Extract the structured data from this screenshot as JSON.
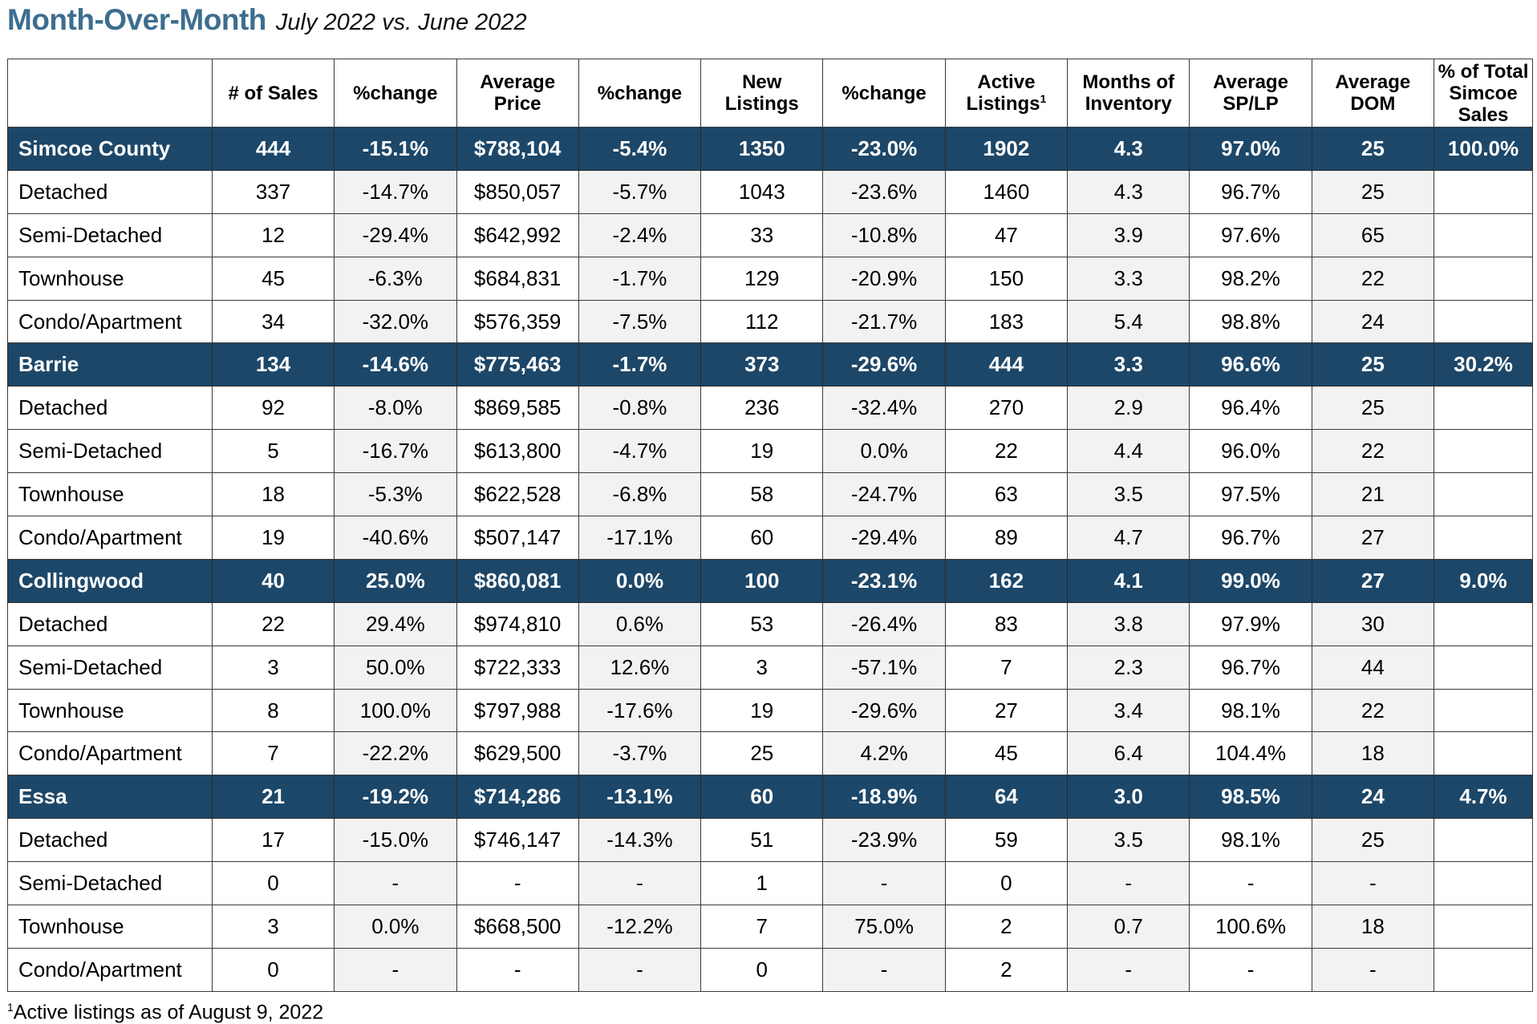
{
  "title": {
    "main": "Month-Over-Month",
    "sub": "July 2022 vs. June 2022"
  },
  "columns": [
    "",
    "# of Sales",
    "%change",
    "Average Price",
    "%change",
    "New Listings",
    "%change",
    "Active Listings",
    "Months of Inventory",
    "Average SP/LP",
    "Average DOM",
    "% of Total Simcoe Sales"
  ],
  "footnote_marker": "1",
  "rows": [
    {
      "type": "group",
      "cells": [
        "Simcoe County",
        "444",
        "-15.1%",
        "$788,104",
        "-5.4%",
        "1350",
        "-23.0%",
        "1902",
        "4.3",
        "97.0%",
        "25",
        "100.0%"
      ]
    },
    {
      "type": "sub",
      "cells": [
        "Detached",
        "337",
        "-14.7%",
        "$850,057",
        "-5.7%",
        "1043",
        "-23.6%",
        "1460",
        "4.3",
        "96.7%",
        "25",
        ""
      ]
    },
    {
      "type": "sub",
      "cells": [
        "Semi-Detached",
        "12",
        "-29.4%",
        "$642,992",
        "-2.4%",
        "33",
        "-10.8%",
        "47",
        "3.9",
        "97.6%",
        "65",
        ""
      ]
    },
    {
      "type": "sub",
      "cells": [
        "Townhouse",
        "45",
        "-6.3%",
        "$684,831",
        "-1.7%",
        "129",
        "-20.9%",
        "150",
        "3.3",
        "98.2%",
        "22",
        ""
      ]
    },
    {
      "type": "sub",
      "cells": [
        "Condo/Apartment",
        "34",
        "-32.0%",
        "$576,359",
        "-7.5%",
        "112",
        "-21.7%",
        "183",
        "5.4",
        "98.8%",
        "24",
        ""
      ]
    },
    {
      "type": "group",
      "cells": [
        "Barrie",
        "134",
        "-14.6%",
        "$775,463",
        "-1.7%",
        "373",
        "-29.6%",
        "444",
        "3.3",
        "96.6%",
        "25",
        "30.2%"
      ]
    },
    {
      "type": "sub",
      "cells": [
        "Detached",
        "92",
        "-8.0%",
        "$869,585",
        "-0.8%",
        "236",
        "-32.4%",
        "270",
        "2.9",
        "96.4%",
        "25",
        ""
      ]
    },
    {
      "type": "sub",
      "cells": [
        "Semi-Detached",
        "5",
        "-16.7%",
        "$613,800",
        "-4.7%",
        "19",
        "0.0%",
        "22",
        "4.4",
        "96.0%",
        "22",
        ""
      ]
    },
    {
      "type": "sub",
      "cells": [
        "Townhouse",
        "18",
        "-5.3%",
        "$622,528",
        "-6.8%",
        "58",
        "-24.7%",
        "63",
        "3.5",
        "97.5%",
        "21",
        ""
      ]
    },
    {
      "type": "sub",
      "cells": [
        "Condo/Apartment",
        "19",
        "-40.6%",
        "$507,147",
        "-17.1%",
        "60",
        "-29.4%",
        "89",
        "4.7",
        "96.7%",
        "27",
        ""
      ]
    },
    {
      "type": "group",
      "cells": [
        "Collingwood",
        "40",
        "25.0%",
        "$860,081",
        "0.0%",
        "100",
        "-23.1%",
        "162",
        "4.1",
        "99.0%",
        "27",
        "9.0%"
      ]
    },
    {
      "type": "sub",
      "cells": [
        "Detached",
        "22",
        "29.4%",
        "$974,810",
        "0.6%",
        "53",
        "-26.4%",
        "83",
        "3.8",
        "97.9%",
        "30",
        ""
      ]
    },
    {
      "type": "sub",
      "cells": [
        "Semi-Detached",
        "3",
        "50.0%",
        "$722,333",
        "12.6%",
        "3",
        "-57.1%",
        "7",
        "2.3",
        "96.7%",
        "44",
        ""
      ]
    },
    {
      "type": "sub",
      "cells": [
        "Townhouse",
        "8",
        "100.0%",
        "$797,988",
        "-17.6%",
        "19",
        "-29.6%",
        "27",
        "3.4",
        "98.1%",
        "22",
        ""
      ]
    },
    {
      "type": "sub",
      "cells": [
        "Condo/Apartment",
        "7",
        "-22.2%",
        "$629,500",
        "-3.7%",
        "25",
        "4.2%",
        "45",
        "6.4",
        "104.4%",
        "18",
        ""
      ]
    },
    {
      "type": "group",
      "cells": [
        "Essa",
        "21",
        "-19.2%",
        "$714,286",
        "-13.1%",
        "60",
        "-18.9%",
        "64",
        "3.0",
        "98.5%",
        "24",
        "4.7%"
      ]
    },
    {
      "type": "sub",
      "cells": [
        "Detached",
        "17",
        "-15.0%",
        "$746,147",
        "-14.3%",
        "51",
        "-23.9%",
        "59",
        "3.5",
        "98.1%",
        "25",
        ""
      ]
    },
    {
      "type": "sub",
      "cells": [
        "Semi-Detached",
        "0",
        "-",
        "-",
        "-",
        "1",
        "-",
        "0",
        "-",
        "-",
        "-",
        ""
      ]
    },
    {
      "type": "sub",
      "cells": [
        "Townhouse",
        "3",
        "0.0%",
        "$668,500",
        "-12.2%",
        "7",
        "75.0%",
        "2",
        "0.7",
        "100.6%",
        "18",
        ""
      ]
    },
    {
      "type": "sub",
      "cells": [
        "Condo/Apartment",
        "0",
        "-",
        "-",
        "-",
        "0",
        "-",
        "2",
        "-",
        "-",
        "-",
        ""
      ]
    }
  ],
  "footnote": {
    "marker": "1",
    "text": "Active listings as of August 9, 2022"
  }
}
